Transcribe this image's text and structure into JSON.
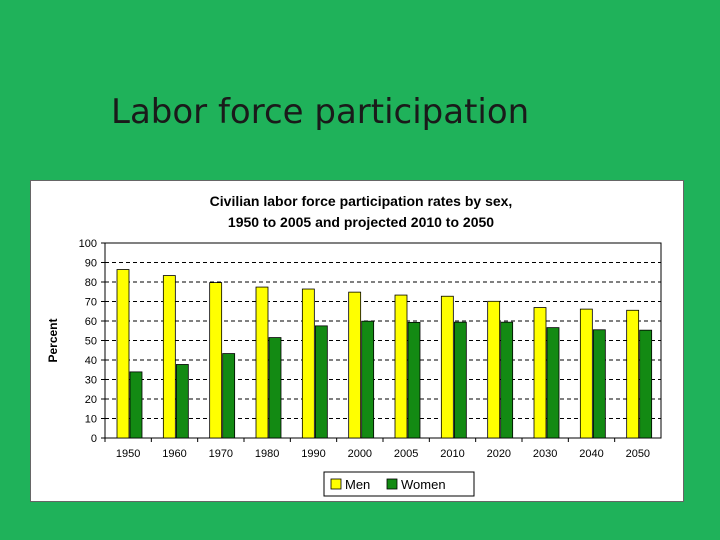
{
  "slide": {
    "title": "Labor force participation"
  },
  "colors": {
    "background": "#1fb25a",
    "men": "#ffff00",
    "women": "#138a13"
  },
  "chart_data": {
    "type": "bar",
    "title_lines": [
      "Civilian labor force participation rates by sex,",
      "1950 to 2005 and projected 2010 to 2050"
    ],
    "xlabel": "",
    "ylabel": "Percent",
    "ylim": [
      0,
      100
    ],
    "yticks": [
      0,
      10,
      20,
      30,
      40,
      50,
      60,
      70,
      80,
      90,
      100
    ],
    "grid": "dashed horizontal",
    "legend_position": "bottom",
    "categories": [
      "1950",
      "1960",
      "1970",
      "1980",
      "1990",
      "2000",
      "2005",
      "2010",
      "2020",
      "2030",
      "2040",
      "2050"
    ],
    "series": [
      {
        "name": "Men",
        "color": "#ffff00",
        "values": [
          86.4,
          83.3,
          79.7,
          77.4,
          76.4,
          74.8,
          73.3,
          72.7,
          70.1,
          66.9,
          66.1,
          65.5
        ]
      },
      {
        "name": "Women",
        "color": "#138a13",
        "values": [
          33.9,
          37.7,
          43.3,
          51.5,
          57.5,
          59.9,
          59.3,
          59.4,
          59.4,
          56.6,
          55.5,
          55.3
        ]
      }
    ]
  }
}
